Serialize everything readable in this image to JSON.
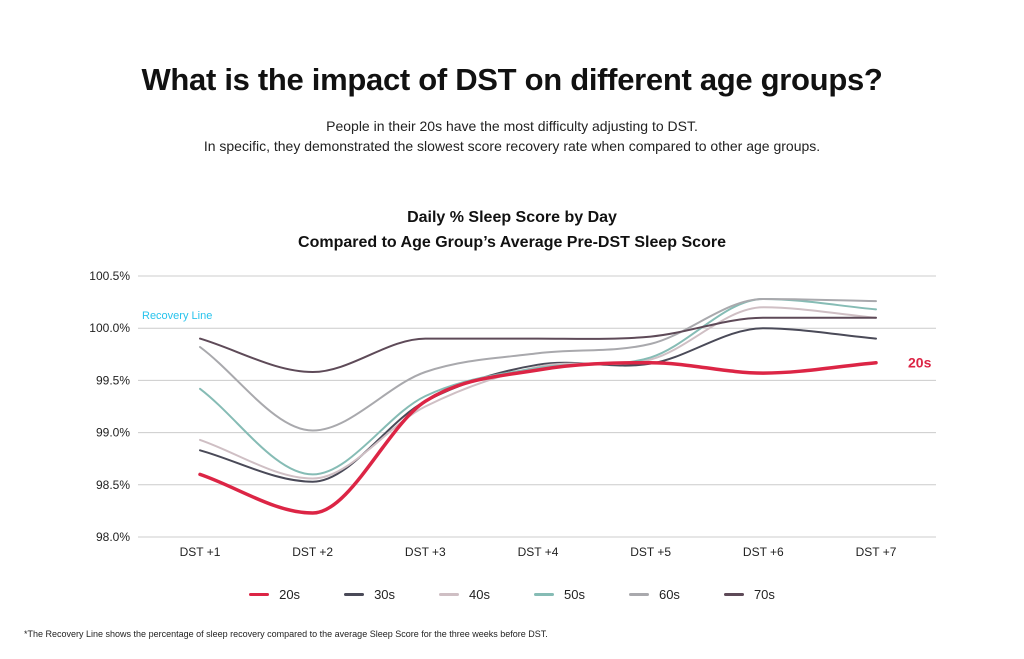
{
  "headline": "What is the impact of DST on different age groups?",
  "intro": {
    "line1": "People in their 20s have the most difficulty adjusting to DST.",
    "line2": "In specific, they demonstrated the slowest score recovery rate when compared to other age groups."
  },
  "footnote": "*The Recovery Line shows the percentage of sleep recovery compared to the average Sleep Score for the three weeks before DST.",
  "colors": {
    "s20": "#dc2545",
    "s30": "#4a4a58",
    "s40": "#cfbfc4",
    "s50": "#86bcb5",
    "s60": "#a9a9ad",
    "s70": "#5e4a58",
    "recovery_start": "#27c3ec",
    "recovery_end": "#22d47f",
    "grid": "#cccccc"
  },
  "chart_data": {
    "type": "line",
    "title_line1": "Daily % Sleep Score by Day",
    "title_line2": "Compared to Age Group’s Average Pre-DST Sleep Score",
    "categories": [
      "DST +1",
      "DST +2",
      "DST +3",
      "DST +4",
      "DST +5",
      "DST +6",
      "DST +7"
    ],
    "ylim": [
      98.0,
      100.5
    ],
    "yticks": [
      98.0,
      98.5,
      99.0,
      99.5,
      100.0,
      100.5
    ],
    "ytick_labels": [
      "98.0%",
      "98.5%",
      "99.0%",
      "99.5%",
      "100.0%",
      "100.5%"
    ],
    "grid": true,
    "legend_position": "bottom",
    "recovery_line": {
      "label": "Recovery Line",
      "value": 100.0
    },
    "end_label": "20s",
    "series": [
      {
        "name": "20s",
        "color_key": "s20",
        "values": [
          98.6,
          98.23,
          99.3,
          99.6,
          99.67,
          99.57,
          99.67
        ]
      },
      {
        "name": "30s",
        "color_key": "s30",
        "values": [
          98.83,
          98.53,
          99.3,
          99.65,
          99.66,
          100.0,
          99.9
        ]
      },
      {
        "name": "40s",
        "color_key": "s40",
        "values": [
          98.93,
          98.56,
          99.25,
          99.63,
          99.7,
          100.2,
          100.1
        ]
      },
      {
        "name": "50s",
        "color_key": "s50",
        "values": [
          99.42,
          98.6,
          99.35,
          99.62,
          99.72,
          100.28,
          100.18
        ]
      },
      {
        "name": "60s",
        "color_key": "s60",
        "values": [
          99.82,
          99.02,
          99.58,
          99.76,
          99.85,
          100.28,
          100.26
        ]
      },
      {
        "name": "70s",
        "color_key": "s70",
        "values": [
          99.9,
          99.58,
          99.9,
          99.9,
          99.92,
          100.1,
          100.1
        ]
      }
    ]
  }
}
